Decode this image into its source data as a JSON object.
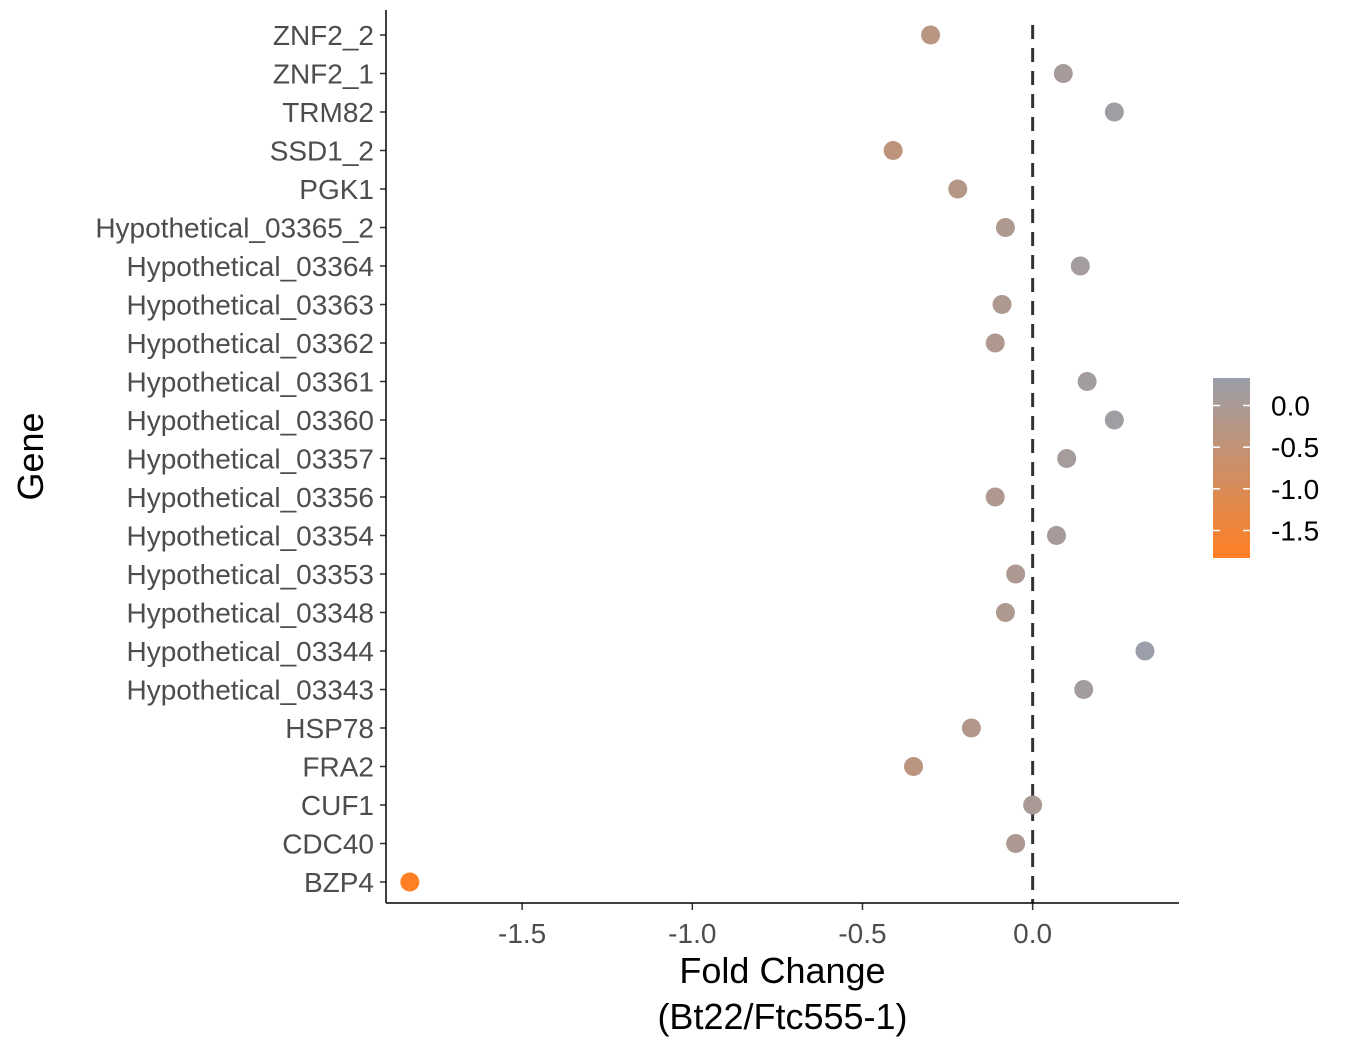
{
  "chart_data": {
    "type": "scatter",
    "xlabel": [
      "Fold Change",
      "(Bt22/Ftc555-1)"
    ],
    "ylabel": "Gene",
    "xlim": [
      -1.9,
      0.43
    ],
    "xticks": [
      -1.5,
      -1.0,
      -0.5,
      0.0
    ],
    "xtick_labels": [
      "-1.5",
      "-1.0",
      "-0.5",
      "0.0"
    ],
    "reference_line": {
      "x": 0,
      "style": "dashed"
    },
    "grid": false,
    "categories": [
      "ZNF2_2",
      "ZNF2_1",
      "TRM82",
      "SSD1_2",
      "PGK1",
      "Hypothetical_03365_2",
      "Hypothetical_03364",
      "Hypothetical_03363",
      "Hypothetical_03362",
      "Hypothetical_03361",
      "Hypothetical_03360",
      "Hypothetical_03357",
      "Hypothetical_03356",
      "Hypothetical_03354",
      "Hypothetical_03353",
      "Hypothetical_03348",
      "Hypothetical_03344",
      "Hypothetical_03343",
      "HSP78",
      "FRA2",
      "CUF1",
      "CDC40",
      "BZP4"
    ],
    "values": [
      -0.3,
      0.09,
      0.24,
      -0.41,
      -0.22,
      -0.08,
      0.14,
      -0.09,
      -0.11,
      0.16,
      0.24,
      0.1,
      -0.11,
      0.07,
      -0.05,
      -0.08,
      0.33,
      0.15,
      -0.18,
      -0.35,
      0.0,
      -0.05,
      -1.83
    ],
    "color_scale": {
      "position": "right",
      "low": -1.83,
      "high": 0.33,
      "low_color": "#ff7f24",
      "high_color": "#9b9fa9",
      "ticks": [
        0.0,
        -0.5,
        -1.0,
        -1.5
      ],
      "tick_labels": [
        "0.0",
        "-0.5",
        "-1.0",
        "-1.5"
      ]
    }
  }
}
